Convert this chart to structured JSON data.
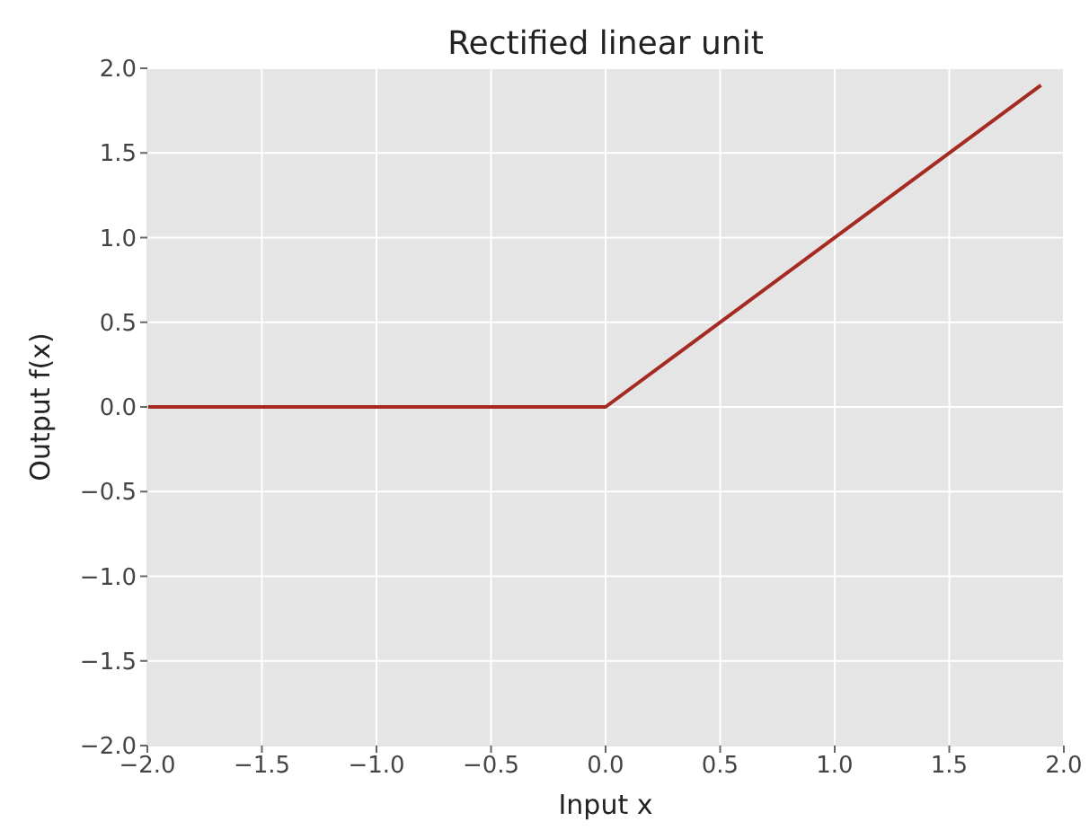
{
  "chart_data": {
    "type": "line",
    "title": "Rectified linear unit",
    "xlabel": "Input x",
    "ylabel": "Output f(x)",
    "x": [
      -2,
      0,
      1.9
    ],
    "series": [
      {
        "color": "#a52a22",
        "values": [
          0,
          0,
          1.9
        ]
      }
    ],
    "xlim": [
      -2,
      2
    ],
    "ylim": [
      -2,
      2
    ],
    "xticks": [
      {
        "value": -2,
        "label": "−2.0"
      },
      {
        "value": -1.5,
        "label": "−1.5"
      },
      {
        "value": -1,
        "label": "−1.0"
      },
      {
        "value": -0.5,
        "label": "−0.5"
      },
      {
        "value": 0,
        "label": "0.0"
      },
      {
        "value": 0.5,
        "label": "0.5"
      },
      {
        "value": 1,
        "label": "1.0"
      },
      {
        "value": 1.5,
        "label": "1.5"
      },
      {
        "value": 2,
        "label": "2.0"
      }
    ],
    "yticks": [
      {
        "value": -2,
        "label": "−2.0"
      },
      {
        "value": -1.5,
        "label": "−1.5"
      },
      {
        "value": -1,
        "label": "−1.0"
      },
      {
        "value": -0.5,
        "label": "−0.5"
      },
      {
        "value": 0,
        "label": "0.0"
      },
      {
        "value": 0.5,
        "label": "0.5"
      },
      {
        "value": 1,
        "label": "1.0"
      },
      {
        "value": 1.5,
        "label": "1.5"
      },
      {
        "value": 2,
        "label": "2.0"
      }
    ],
    "grid": true,
    "legend": false,
    "marker": "none",
    "line_style": "solid"
  }
}
